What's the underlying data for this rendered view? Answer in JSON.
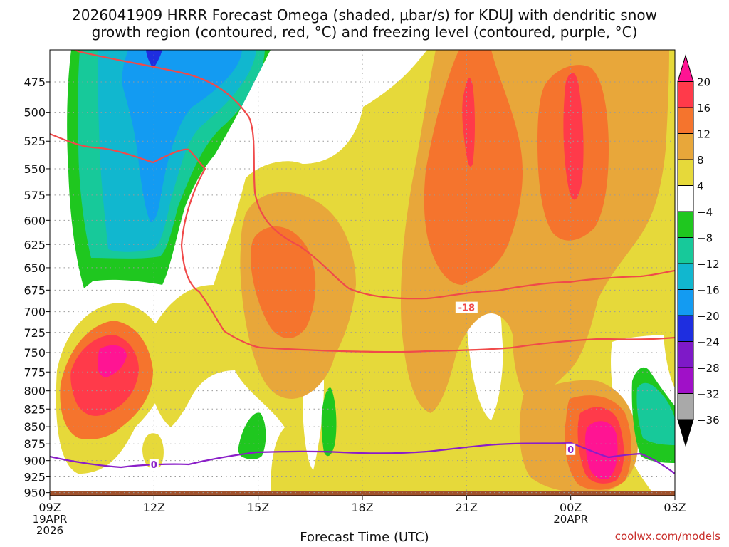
{
  "title_line1": "2026041909 HRRR Forecast Omega (shaded, μbar/s) for KDUJ with dendritic snow",
  "title_line2": "growth region (contoured, red, °C) and freezing level (contoured, purple, °C)",
  "credit": "coolwx.com/models",
  "chart_data": {
    "type": "heatmap",
    "xlabel": "Forecast Time (UTC)",
    "x_ticks": [
      "09Z",
      "12Z",
      "15Z",
      "18Z",
      "21Z",
      "00Z",
      "03Z"
    ],
    "x_tick_hours": [
      9,
      12,
      15,
      18,
      21,
      24,
      27
    ],
    "x_date_labels": [
      {
        "hour": 9,
        "lines": [
          "19APR",
          "2026"
        ]
      },
      {
        "hour": 24,
        "lines": [
          "20APR"
        ]
      }
    ],
    "xlim": [
      9,
      27
    ],
    "y_ticks": [
      475,
      500,
      525,
      550,
      575,
      600,
      625,
      650,
      675,
      700,
      725,
      750,
      775,
      800,
      825,
      850,
      875,
      900,
      925,
      950
    ],
    "ylim": [
      450,
      955
    ],
    "y_scale": "log-pressure",
    "grid": true,
    "colorbar": {
      "labels": [
        "20",
        "16",
        "12",
        "8",
        "4",
        "−4",
        "−8",
        "−12",
        "−16",
        "−20",
        "−24",
        "−28",
        "−32",
        "−36"
      ],
      "colors": [
        "#ff1493",
        "#ff3a4a",
        "#f5742d",
        "#e8a73a",
        "#e6d93a",
        "#ffffff",
        "#1fc71f",
        "#17c99a",
        "#11b7cf",
        "#139bf2",
        "#1e2ee0",
        "#7e19c8",
        "#a010c8",
        "#a9a9a9"
      ]
    },
    "contours": [
      {
        "label": "-18",
        "label_at": [
          21,
          695
        ]
      },
      {
        "label": "",
        "label_at": null
      },
      {
        "label": "0",
        "label_at": [
          12,
          906
        ]
      },
      {
        "label": "0",
        "label_at": [
          24,
          883
        ]
      }
    ]
  }
}
